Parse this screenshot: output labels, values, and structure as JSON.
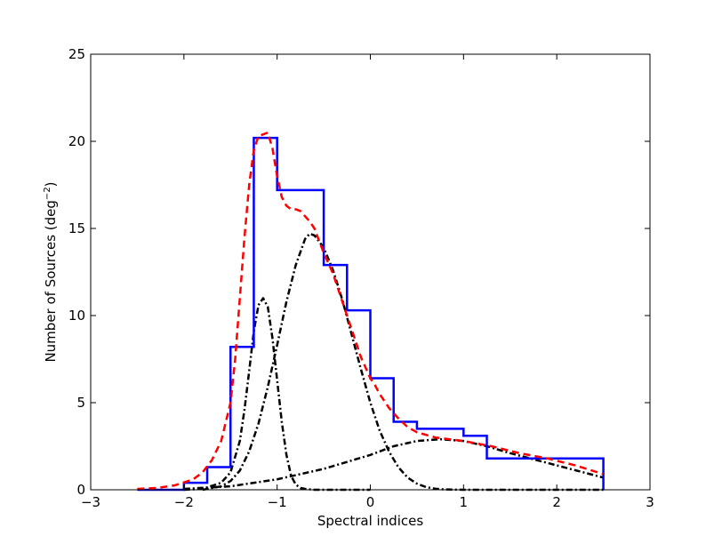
{
  "chart_data": {
    "type": "line",
    "xlabel": "Spectral indices",
    "ylabel_main": "Number of Sources (deg",
    "ylabel_sup": "−2",
    "ylabel_end": ")",
    "xlim": [
      -3,
      3
    ],
    "ylim": [
      0,
      25
    ],
    "xticks": [
      -3,
      -2,
      -1,
      0,
      1,
      2,
      3
    ],
    "xtick_labels": [
      "−3",
      "−2",
      "−1",
      "0",
      "1",
      "2",
      "3"
    ],
    "yticks": [
      0,
      5,
      10,
      15,
      20,
      25
    ],
    "ytick_labels": [
      "0",
      "5",
      "10",
      "15",
      "20",
      "25"
    ],
    "grid": false,
    "colors": {
      "histogram": "#0000ff",
      "total_fit": "#ff0000",
      "components": "#000000"
    },
    "histogram": {
      "style": "step",
      "bin_edges": [
        -2.5,
        -2.25,
        -2.0,
        -1.75,
        -1.5,
        -1.25,
        -1.0,
        -0.75,
        -0.5,
        -0.25,
        0.0,
        0.25,
        0.5,
        0.75,
        1.0,
        1.25,
        1.5,
        1.75,
        2.0,
        2.25,
        2.5
      ],
      "counts": [
        0,
        0,
        0.4,
        1.3,
        8.2,
        20.2,
        17.2,
        17.2,
        12.9,
        10.3,
        6.4,
        3.9,
        3.5,
        3.5,
        3.1,
        1.8,
        1.8,
        1.8,
        1.8,
        1.8
      ]
    },
    "total_fit": {
      "style": "dashed",
      "x": [
        -2.5,
        -2.3,
        -2.1,
        -1.9,
        -1.8,
        -1.7,
        -1.6,
        -1.5,
        -1.45,
        -1.4,
        -1.35,
        -1.3,
        -1.25,
        -1.2,
        -1.15,
        -1.1,
        -1.05,
        -1.0,
        -0.95,
        -0.9,
        -0.85,
        -0.8,
        -0.75,
        -0.7,
        -0.65,
        -0.6,
        -0.55,
        -0.5,
        -0.45,
        -0.4,
        -0.35,
        -0.3,
        -0.25,
        -0.2,
        -0.15,
        -0.1,
        -0.05,
        0.0,
        0.05,
        0.1,
        0.2,
        0.3,
        0.4,
        0.5,
        0.7,
        1.0,
        1.3,
        1.6,
        1.9,
        2.2,
        2.5
      ],
      "y": [
        0.05,
        0.1,
        0.25,
        0.6,
        1.0,
        1.7,
        2.8,
        5.0,
        7.5,
        11.0,
        14.5,
        17.5,
        19.5,
        20.3,
        20.4,
        20.5,
        19.6,
        18.0,
        16.8,
        16.3,
        16.1,
        16.1,
        16.0,
        15.7,
        15.4,
        15.0,
        14.3,
        13.6,
        13.0,
        12.4,
        11.6,
        10.8,
        10.0,
        9.2,
        8.4,
        7.6,
        7.0,
        6.4,
        6.0,
        5.5,
        4.7,
        4.1,
        3.6,
        3.3,
        3.0,
        2.8,
        2.5,
        2.1,
        1.8,
        1.4,
        0.9
      ]
    },
    "components": [
      {
        "style": "dashdot",
        "x": [
          -2.0,
          -1.8,
          -1.6,
          -1.5,
          -1.4,
          -1.35,
          -1.3,
          -1.25,
          -1.2,
          -1.15,
          -1.1,
          -1.05,
          -1.0,
          -0.95,
          -0.9,
          -0.85,
          -0.8,
          -0.75,
          -0.7,
          -0.6,
          -0.5,
          -0.3,
          0.0
        ],
        "y": [
          0.0,
          0.05,
          0.4,
          1.0,
          2.8,
          4.6,
          6.8,
          9.1,
          10.6,
          11.0,
          10.5,
          8.7,
          6.3,
          3.9,
          2.0,
          0.8,
          0.3,
          0.1,
          0.05,
          0.0,
          0.0,
          0.0,
          0.0
        ]
      },
      {
        "style": "dashdot",
        "x": [
          -1.8,
          -1.6,
          -1.5,
          -1.4,
          -1.3,
          -1.2,
          -1.1,
          -1.0,
          -0.9,
          -0.8,
          -0.7,
          -0.65,
          -0.6,
          -0.5,
          -0.4,
          -0.3,
          -0.2,
          -0.1,
          0.0,
          0.1,
          0.2,
          0.3,
          0.4,
          0.5,
          0.6,
          0.7,
          0.8,
          1.0,
          1.5,
          2.0,
          2.5
        ],
        "y": [
          0.0,
          0.2,
          0.5,
          1.1,
          2.2,
          3.8,
          5.9,
          8.3,
          10.8,
          12.9,
          14.4,
          14.7,
          14.6,
          13.9,
          12.6,
          10.9,
          8.9,
          6.9,
          5.0,
          3.4,
          2.2,
          1.3,
          0.7,
          0.35,
          0.15,
          0.06,
          0.02,
          0.0,
          0.0,
          0.0,
          0.0
        ]
      },
      {
        "style": "dashdot",
        "x": [
          -2.0,
          -1.5,
          -1.0,
          -0.5,
          0.0,
          0.25,
          0.5,
          0.75,
          1.0,
          1.25,
          1.5,
          2.0,
          2.5
        ],
        "y": [
          0.05,
          0.2,
          0.6,
          1.2,
          2.0,
          2.5,
          2.8,
          2.9,
          2.8,
          2.5,
          2.1,
          1.4,
          0.7
        ]
      }
    ]
  }
}
